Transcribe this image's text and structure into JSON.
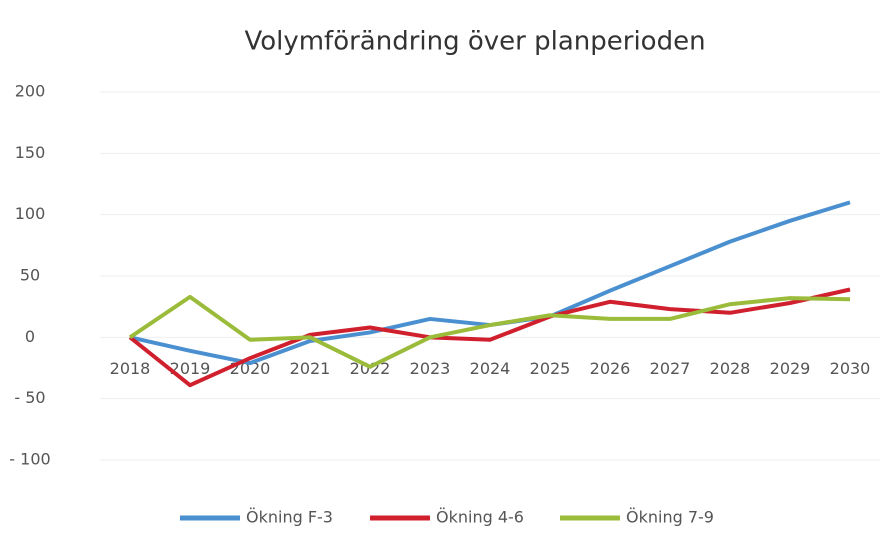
{
  "chart_data": {
    "type": "line",
    "title": "Volymförändring över planperioden",
    "categories": [
      "2018",
      "2019",
      "2020",
      "2021",
      "2022",
      "2023",
      "2024",
      "2025",
      "2026",
      "2027",
      "2028",
      "2029",
      "2030"
    ],
    "series": [
      {
        "name": "Ökning F-3",
        "color": "#4a90d0",
        "values": [
          0,
          -11,
          -21,
          -3,
          4,
          15,
          10,
          17,
          38,
          58,
          78,
          95,
          110
        ]
      },
      {
        "name": "Ökning 4-6",
        "color": "#d0202e",
        "values": [
          0,
          -39,
          -17,
          2,
          8,
          0,
          -2,
          17,
          29,
          23,
          20,
          28,
          39
        ]
      },
      {
        "name": "Ökning 7-9",
        "color": "#9bbb3b",
        "values": [
          0,
          33,
          -2,
          0,
          -24,
          0,
          10,
          18,
          15,
          15,
          27,
          32,
          31
        ]
      }
    ],
    "ylim": [
      -100,
      200
    ],
    "yticks": [
      {
        "value": -100,
        "label": "- 100"
      },
      {
        "value": -50,
        "label": "- 50"
      },
      0,
      50,
      100,
      150,
      200
    ],
    "grid": true,
    "legend": "bottom"
  }
}
